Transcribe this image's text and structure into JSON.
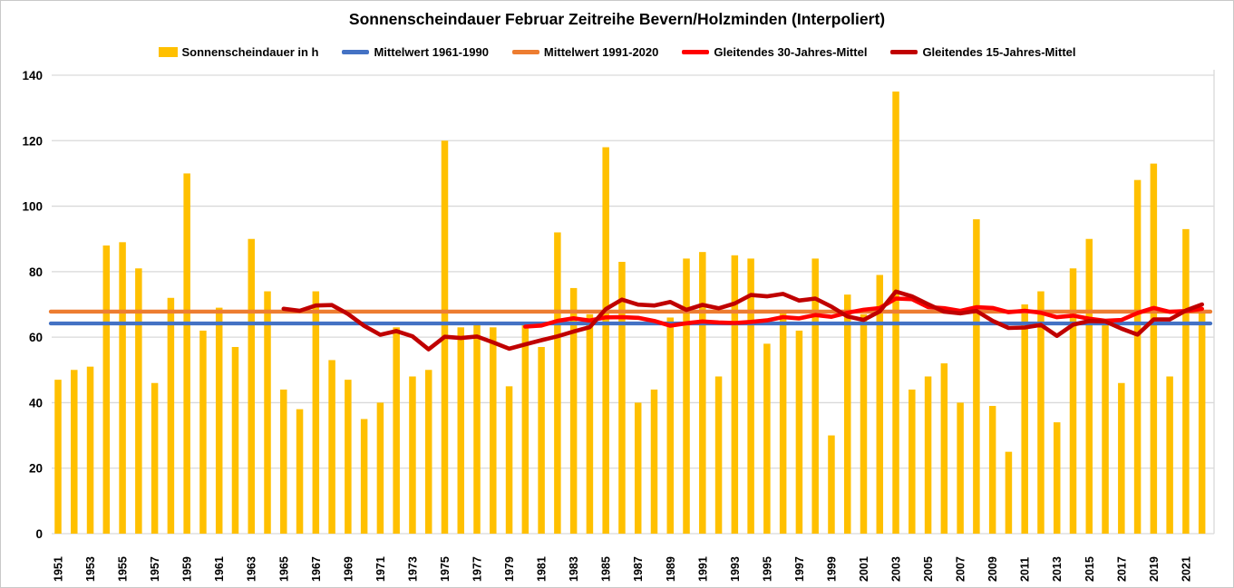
{
  "title": "Sonnenscheindauer Februar Zeitreihe Bevern/Holzminden (Interpoliert)",
  "legend": [
    {
      "label": "Sonnenscheindauer in h",
      "marker": "square",
      "color": "#FFC000"
    },
    {
      "label": "Mittelwert 1961-1990",
      "marker": "line",
      "color": "#4472C4"
    },
    {
      "label": "Mittelwert 1991-2020",
      "marker": "line",
      "color": "#ED7D31"
    },
    {
      "label": "Gleitendes 30-Jahres-Mittel",
      "marker": "line",
      "color": "#FF0000"
    },
    {
      "label": "Gleitendes 15-Jahres-Mittel",
      "marker": "line",
      "color": "#C00000"
    }
  ],
  "chart_data": {
    "type": "bar",
    "title": "Sonnenscheindauer Februar Zeitreihe Bevern/Holzminden (Interpoliert)",
    "xlabel": "",
    "ylabel": "",
    "ylim": [
      0,
      140
    ],
    "y_ticks": [
      0,
      20,
      40,
      60,
      80,
      100,
      120,
      140
    ],
    "x_tick_years": [
      1951,
      1953,
      1955,
      1957,
      1959,
      1961,
      1963,
      1965,
      1967,
      1969,
      1971,
      1973,
      1975,
      1977,
      1979,
      1981,
      1983,
      1985,
      1987,
      1989,
      1991,
      1993,
      1995,
      1997,
      1999,
      2001,
      2003,
      2005,
      2007,
      2009,
      2011,
      2013,
      2015,
      2017,
      2019,
      2021
    ],
    "grid": "horizontal",
    "legend_position": "top",
    "categories": [
      1951,
      1952,
      1953,
      1954,
      1955,
      1956,
      1957,
      1958,
      1959,
      1960,
      1961,
      1962,
      1963,
      1964,
      1965,
      1966,
      1967,
      1968,
      1969,
      1970,
      1971,
      1972,
      1973,
      1974,
      1975,
      1976,
      1977,
      1978,
      1979,
      1980,
      1981,
      1982,
      1983,
      1984,
      1985,
      1986,
      1987,
      1988,
      1989,
      1990,
      1991,
      1992,
      1993,
      1994,
      1995,
      1996,
      1997,
      1998,
      1999,
      2000,
      2001,
      2002,
      2003,
      2004,
      2005,
      2006,
      2007,
      2008,
      2009,
      2010,
      2011,
      2012,
      2013,
      2014,
      2015,
      2016,
      2017,
      2018,
      2019,
      2020,
      2021,
      2022
    ],
    "series": [
      {
        "name": "Sonnenscheindauer in h",
        "type": "bar",
        "color": "#FFC000",
        "values": [
          47,
          50,
          51,
          88,
          89,
          81,
          46,
          72,
          110,
          62,
          69,
          57,
          90,
          74,
          44,
          38,
          74,
          53,
          47,
          35,
          40,
          63,
          48,
          50,
          120,
          63,
          64,
          63,
          45,
          64,
          57,
          92,
          75,
          67,
          118,
          83,
          40,
          44,
          66,
          84,
          86,
          48,
          85,
          84,
          58,
          68,
          62,
          84,
          30,
          73,
          67,
          79,
          135,
          44,
          48,
          52,
          40,
          96,
          39,
          25,
          70,
          74,
          34,
          81,
          90,
          65,
          46,
          108,
          113,
          48,
          93,
          68
        ]
      },
      {
        "name": "Mittelwert 1961-1990",
        "type": "reference-line",
        "color": "#4472C4",
        "value": 64.2,
        "mean_of_years": [
          1961,
          1990
        ]
      },
      {
        "name": "Mittelwert 1991-2020",
        "type": "reference-line",
        "color": "#ED7D31",
        "value": 67.8,
        "mean_of_years": [
          1991,
          2020
        ]
      },
      {
        "name": "Gleitendes 30-Jahres-Mittel",
        "type": "trailing-mean-line",
        "color": "#FF0000",
        "window": 30,
        "first_year": 1980
      },
      {
        "name": "Gleitendes 15-Jahres-Mittel",
        "type": "trailing-mean-line",
        "color": "#C00000",
        "window": 15,
        "first_year": 1965
      }
    ]
  },
  "colors": {
    "bar": "#FFC000",
    "mean_1961_1990": "#4472C4",
    "mean_1991_2020": "#ED7D31",
    "rolling_30": "#FF0000",
    "rolling_15": "#C00000",
    "gridline": "#D9D9D9",
    "text": "#000000"
  }
}
